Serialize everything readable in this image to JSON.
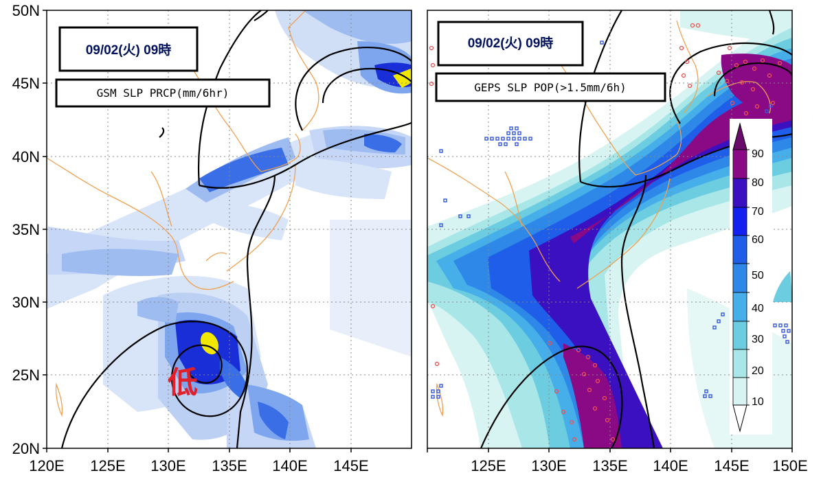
{
  "panels": [
    {
      "id": "gsm",
      "date_label": "09/02(火) 09時",
      "title_label": "GSM SLP PRCP(mm/6hr)",
      "low_mark": "低",
      "lat_labels": [
        "50N",
        "45N",
        "40N",
        "35N",
        "30N",
        "25N",
        "20N"
      ],
      "lon_labels": [
        "120E",
        "125E",
        "130E",
        "135E",
        "140E",
        "145E"
      ]
    },
    {
      "id": "geps",
      "date_label": "09/02(火) 09時",
      "title_label": "GEPS SLP POP(>1.5mm/6h)",
      "lon_labels": [
        "125E",
        "130E",
        "135E",
        "140E",
        "145E",
        "150E"
      ]
    }
  ],
  "colorbar": {
    "labels": [
      "90",
      "80",
      "70",
      "60",
      "50",
      "40",
      "30",
      "20",
      "10"
    ],
    "colors": [
      "#8a0a86",
      "#3a10c0",
      "#1420f0",
      "#1e5ee8",
      "#2e88e8",
      "#46aee8",
      "#6ccce0",
      "#a8e6e8",
      "#d8f4f2"
    ]
  },
  "colors": {
    "precip_light": "#d8e4f8",
    "precip_mid": "#9ebcf0",
    "precip_strong": "#3a6ee6",
    "precip_heavy": "#1a2ed8",
    "precip_extreme": "#f0e800",
    "coastline": "#f0a050",
    "isobar": "#000000",
    "label_box_text": "#00105a",
    "low_mark": "#e0202a"
  }
}
